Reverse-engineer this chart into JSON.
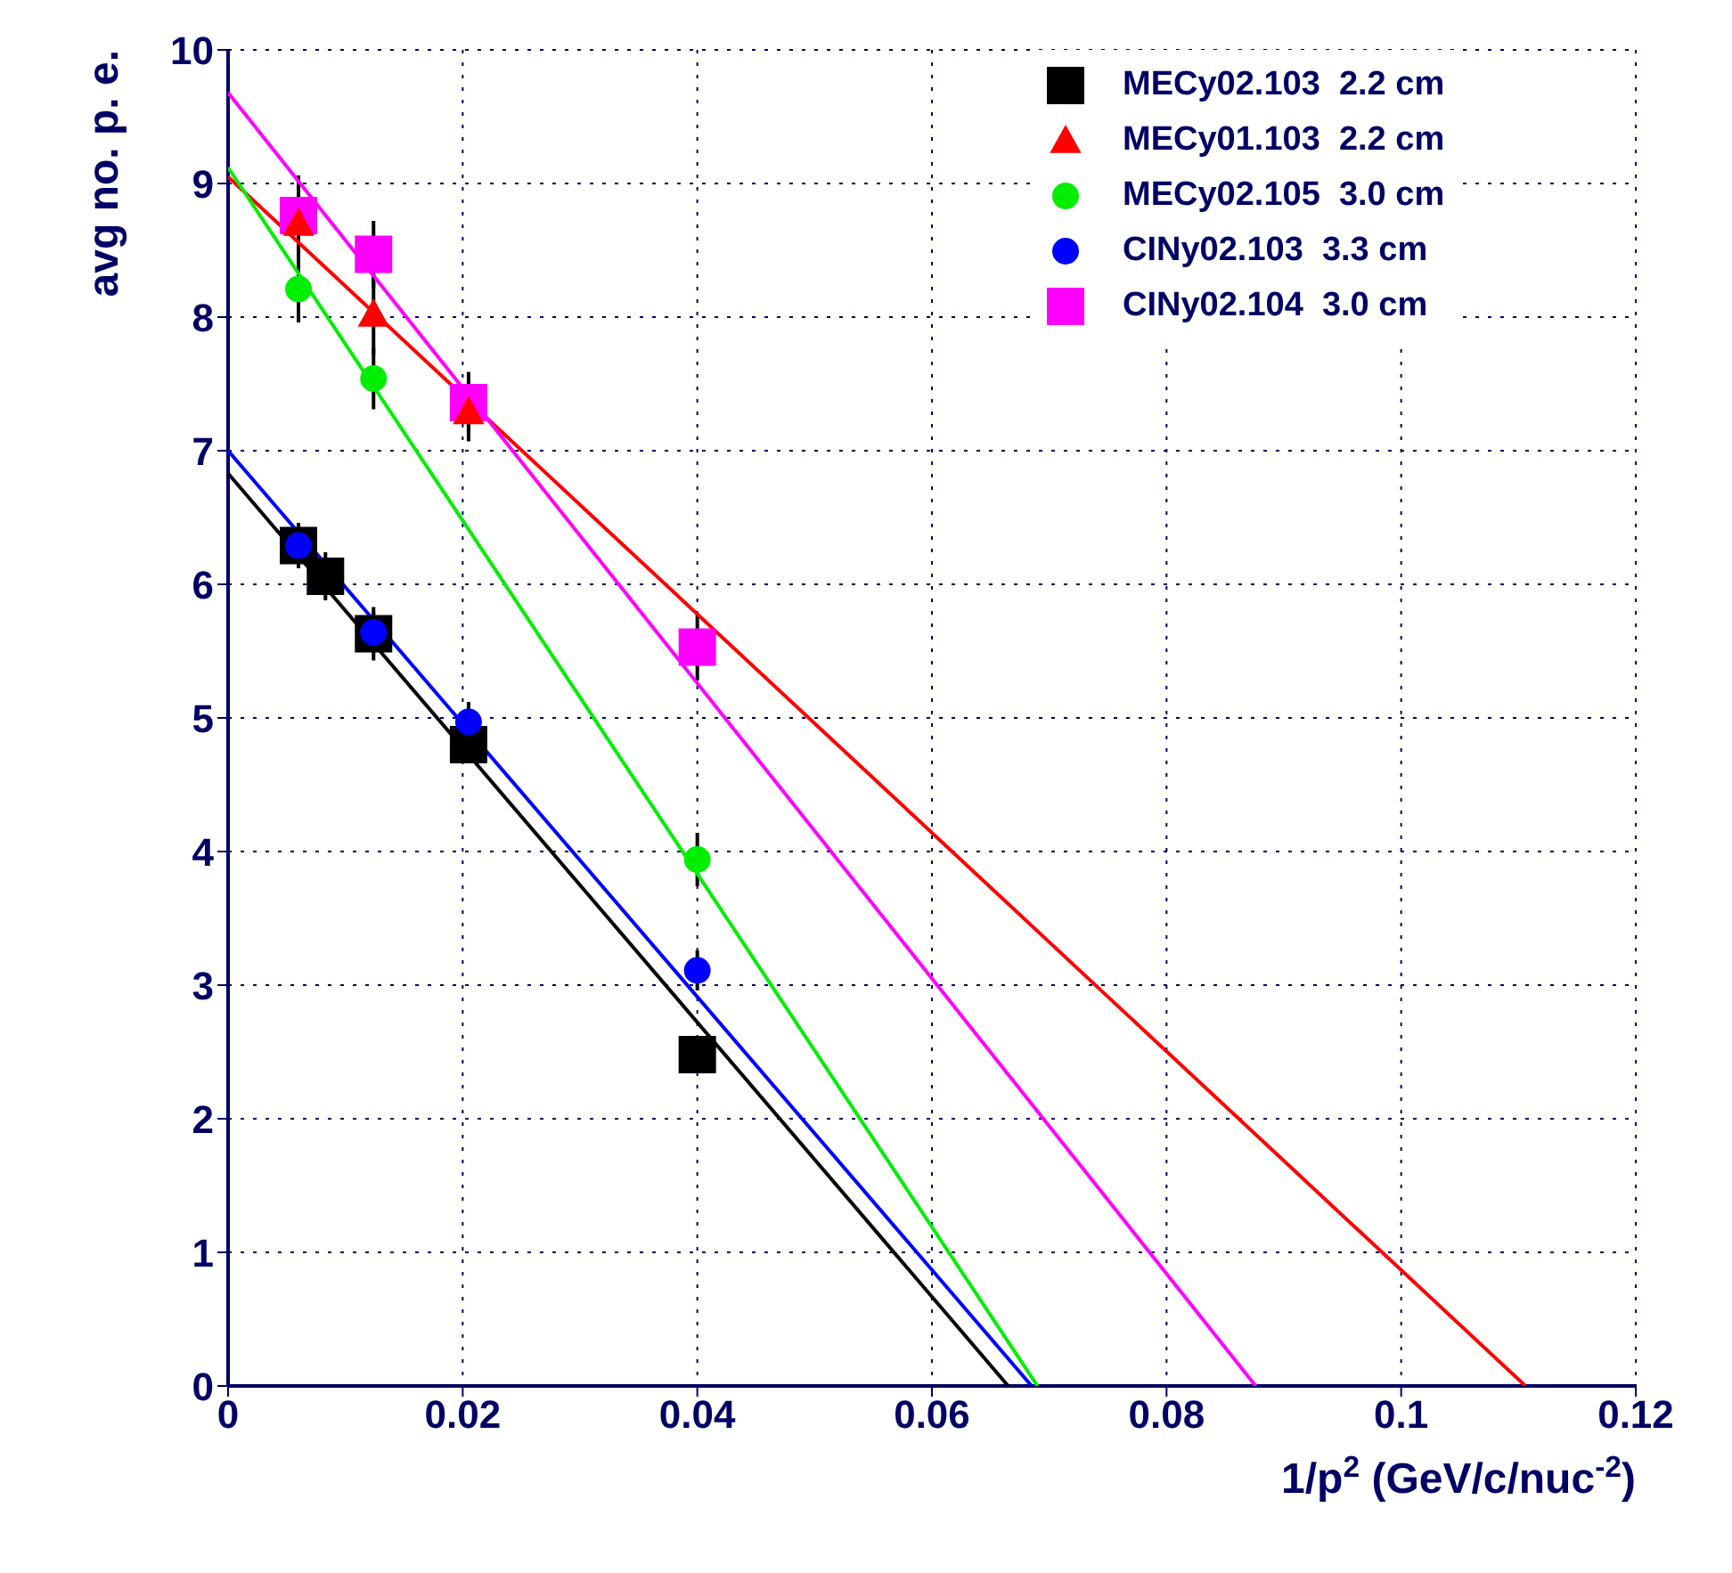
{
  "chart_data": {
    "type": "scatter",
    "xlabel": "1/p$^{2}$ (GeV/c/nuc$^{-2}$)",
    "ylabel": "avg no. p. e.",
    "xlim": [
      0,
      0.12
    ],
    "xticks": [
      0,
      0.02,
      0.04,
      0.06,
      0.08,
      0.1,
      0.12
    ],
    "ylim": [
      0,
      10
    ],
    "yticks": [
      0,
      1,
      2,
      3,
      4,
      5,
      6,
      7,
      8,
      9,
      10
    ],
    "grid": true,
    "legend": "top right",
    "series": [
      {
        "name": "MECy02.103  2.2 cm",
        "color": "#000000",
        "marker": "square",
        "x": [
          0.006,
          0.0083,
          0.0124,
          0.0205,
          0.04
        ],
        "values": [
          6.29,
          6.06,
          5.63,
          4.8,
          2.48
        ],
        "errors": [
          0.17,
          0.18,
          0.2,
          0.1,
          0.1
        ]
      },
      {
        "name": "MECy01.103  2.2 cm",
        "color": "#ff0000",
        "marker": "triangle",
        "x": [
          0.006,
          0.0124,
          0.0205
        ],
        "values": [
          8.7,
          8.02,
          7.29
        ],
        "errors": [
          0.3,
          0.3,
          0.22
        ]
      },
      {
        "name": "MECy02.105  3.0 cm",
        "color": "#00ee00",
        "marker": "circle",
        "x": [
          0.006,
          0.0124,
          0.04
        ],
        "values": [
          8.21,
          7.54,
          3.94
        ],
        "errors": [
          0.25,
          0.23,
          0.2
        ]
      },
      {
        "name": "CINy02.103  3.3 cm",
        "color": "#0000ff",
        "marker": "circle",
        "x": [
          0.006,
          0.0124,
          0.0205,
          0.04
        ],
        "values": [
          6.29,
          5.64,
          4.97,
          3.11
        ],
        "errors": [
          0.15,
          0.15,
          0.15,
          0.15
        ]
      },
      {
        "name": "CINy02.104  3.0 cm",
        "color": "#ff00ff",
        "marker": "square",
        "x": [
          0.006,
          0.0124,
          0.0205,
          0.04
        ],
        "values": [
          8.76,
          8.47,
          7.36,
          5.53
        ],
        "errors": [
          0.3,
          0.25,
          0.23,
          0.25
        ]
      },
      {
        "type": "line",
        "color": "#000000",
        "marker": "none",
        "x": [
          0,
          0.0665
        ],
        "values": [
          6.83,
          0
        ]
      },
      {
        "type": "line",
        "color": "#ff0000",
        "marker": "none",
        "x": [
          0,
          0.1106
        ],
        "values": [
          9.05,
          0
        ]
      },
      {
        "type": "line",
        "color": "#00ee00",
        "marker": "none",
        "x": [
          0,
          0.069
        ],
        "values": [
          9.12,
          0
        ]
      },
      {
        "type": "line",
        "color": "#0000ff",
        "marker": "none",
        "x": [
          0,
          0.0685
        ],
        "values": [
          7.0,
          0
        ]
      },
      {
        "type": "line",
        "color": "#ff00ff",
        "marker": "none",
        "x": [
          0,
          0.0876
        ],
        "values": [
          9.68,
          0
        ]
      }
    ]
  }
}
